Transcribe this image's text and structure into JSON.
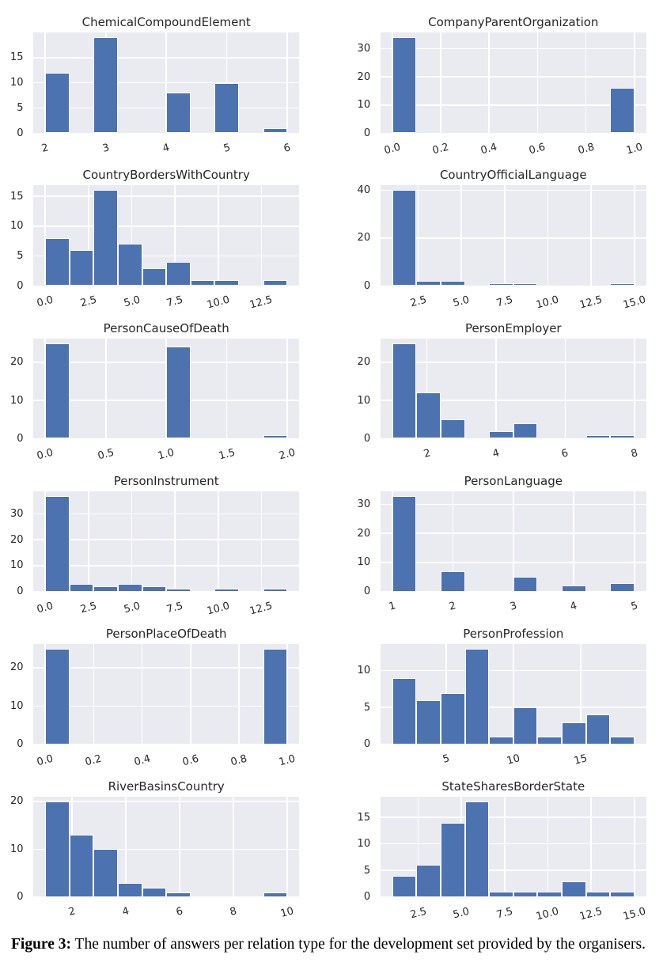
{
  "figure": {
    "caption": {
      "label": "Figure 3:",
      "text": "The number of answers per relation type for the development set provided by the organisers."
    },
    "colors": {
      "bar": "#4c72b0",
      "bar_edge": "#ffffff",
      "axes_background": "#eaeaf1",
      "gridline": "#ffffff",
      "tick_text": "#262626",
      "title_text": "#262626",
      "caption_text": "#000000",
      "figure_background": "#ffffff"
    },
    "chart_data": [
      {
        "type": "bar",
        "title": "ChemicalCompoundElement",
        "bin_start": 2,
        "bin_width": 0.4,
        "counts": [
          12,
          0,
          19,
          0,
          0,
          8,
          0,
          10,
          0,
          1
        ],
        "xlim": [
          1.8,
          6.2
        ],
        "ylim": [
          0,
          19.95
        ],
        "xticks": [
          2,
          3,
          4,
          5,
          6
        ],
        "xtick_labels": [
          "2",
          "3",
          "4",
          "5",
          "6"
        ],
        "yticks": [
          0,
          5,
          10,
          15
        ],
        "ytick_labels": [
          "0",
          "5",
          "10",
          "15"
        ]
      },
      {
        "type": "bar",
        "title": "CompanyParentOrganization",
        "bin_start": 0,
        "bin_width": 0.1,
        "counts": [
          34,
          0,
          0,
          0,
          0,
          0,
          0,
          0,
          0,
          16
        ],
        "xlim": [
          -0.05,
          1.05
        ],
        "ylim": [
          0,
          35.7
        ],
        "xticks": [
          0,
          0.2,
          0.4,
          0.6,
          0.8,
          1.0
        ],
        "xtick_labels": [
          "0.0",
          "0.2",
          "0.4",
          "0.6",
          "0.8",
          "1.0"
        ],
        "yticks": [
          0,
          10,
          20,
          30
        ],
        "ytick_labels": [
          "0",
          "10",
          "20",
          "30"
        ]
      },
      {
        "type": "bar",
        "title": "CountryBordersWithCountry",
        "bin_start": 0,
        "bin_width": 1.4,
        "counts": [
          8,
          6,
          16,
          7,
          3,
          4,
          1,
          1,
          0,
          1
        ],
        "xlim": [
          -0.7,
          14.7
        ],
        "ylim": [
          0,
          16.8
        ],
        "xticks": [
          0,
          2.5,
          5,
          7.5,
          10,
          12.5
        ],
        "xtick_labels": [
          "0.0",
          "2.5",
          "5.0",
          "7.5",
          "10.0",
          "12.5"
        ],
        "yticks": [
          0,
          5,
          10,
          15
        ],
        "ytick_labels": [
          "0",
          "5",
          "10",
          "15"
        ]
      },
      {
        "type": "bar",
        "title": "CountryOfficialLanguage",
        "bin_start": 1,
        "bin_width": 1.4,
        "counts": [
          40,
          2,
          2,
          0,
          1,
          1,
          0,
          0,
          0,
          1
        ],
        "xlim": [
          0.3,
          15.7
        ],
        "ylim": [
          0,
          42
        ],
        "xticks": [
          2.5,
          5,
          7.5,
          10,
          12.5,
          15
        ],
        "xtick_labels": [
          "2.5",
          "5.0",
          "7.5",
          "10.0",
          "12.5",
          "15.0"
        ],
        "yticks": [
          0,
          20,
          40
        ],
        "ytick_labels": [
          "0",
          "20",
          "40"
        ]
      },
      {
        "type": "bar",
        "title": "PersonCauseOfDeath",
        "bin_start": 0,
        "bin_width": 0.2,
        "counts": [
          25,
          0,
          0,
          0,
          0,
          24,
          0,
          0,
          0,
          1
        ],
        "xlim": [
          -0.1,
          2.1
        ],
        "ylim": [
          0,
          26.25
        ],
        "xticks": [
          0,
          0.5,
          1.0,
          1.5,
          2.0
        ],
        "xtick_labels": [
          "0.0",
          "0.5",
          "1.0",
          "1.5",
          "2.0"
        ],
        "yticks": [
          0,
          10,
          20
        ],
        "ytick_labels": [
          "0",
          "10",
          "20"
        ]
      },
      {
        "type": "bar",
        "title": "PersonEmployer",
        "bin_start": 1,
        "bin_width": 0.7,
        "counts": [
          25,
          12,
          5,
          0,
          2,
          4,
          0,
          0,
          1,
          1
        ],
        "xlim": [
          0.65,
          8.35
        ],
        "ylim": [
          0,
          26.25
        ],
        "xticks": [
          2,
          4,
          6,
          8
        ],
        "xtick_labels": [
          "2",
          "4",
          "6",
          "8"
        ],
        "yticks": [
          0,
          10,
          20
        ],
        "ytick_labels": [
          "0",
          "10",
          "20"
        ]
      },
      {
        "type": "bar",
        "title": "PersonInstrument",
        "bin_start": 0,
        "bin_width": 1.4,
        "counts": [
          37,
          3,
          2,
          3,
          2,
          1,
          0,
          1,
          0,
          1
        ],
        "xlim": [
          -0.7,
          14.7
        ],
        "ylim": [
          0,
          38.85
        ],
        "xticks": [
          0,
          2.5,
          5,
          7.5,
          10,
          12.5
        ],
        "xtick_labels": [
          "0.0",
          "2.5",
          "5.0",
          "7.5",
          "10.0",
          "12.5"
        ],
        "yticks": [
          0,
          10,
          20,
          30
        ],
        "ytick_labels": [
          "0",
          "10",
          "20",
          "30"
        ]
      },
      {
        "type": "bar",
        "title": "PersonLanguage",
        "bin_start": 1,
        "bin_width": 0.4,
        "counts": [
          33,
          0,
          7,
          0,
          0,
          5,
          0,
          2,
          0,
          3
        ],
        "xlim": [
          0.8,
          5.2
        ],
        "ylim": [
          0,
          34.65
        ],
        "xticks": [
          1,
          2,
          3,
          4,
          5
        ],
        "xtick_labels": [
          "1",
          "2",
          "3",
          "4",
          "5"
        ],
        "yticks": [
          0,
          10,
          20,
          30
        ],
        "ytick_labels": [
          "0",
          "10",
          "20",
          "30"
        ]
      },
      {
        "type": "bar",
        "title": "PersonPlaceOfDeath",
        "bin_start": 0,
        "bin_width": 0.1,
        "counts": [
          25,
          0,
          0,
          0,
          0,
          0,
          0,
          0,
          0,
          25
        ],
        "xlim": [
          -0.05,
          1.05
        ],
        "ylim": [
          0,
          26.25
        ],
        "xticks": [
          0,
          0.2,
          0.4,
          0.6,
          0.8,
          1.0
        ],
        "xtick_labels": [
          "0.0",
          "0.2",
          "0.4",
          "0.6",
          "0.8",
          "1.0"
        ],
        "yticks": [
          0,
          10,
          20
        ],
        "ytick_labels": [
          "0",
          "10",
          "20"
        ]
      },
      {
        "type": "bar",
        "title": "PersonProfession",
        "bin_start": 1,
        "bin_width": 1.8,
        "counts": [
          9,
          6,
          7,
          13,
          1,
          5,
          1,
          3,
          4,
          1
        ],
        "xlim": [
          0.1,
          19.9
        ],
        "ylim": [
          0,
          13.65
        ],
        "xticks": [
          5,
          10,
          15
        ],
        "xtick_labels": [
          "5",
          "10",
          "15"
        ],
        "yticks": [
          0,
          5,
          10
        ],
        "ytick_labels": [
          "0",
          "5",
          "10"
        ]
      },
      {
        "type": "bar",
        "title": "RiverBasinsCountry",
        "bin_start": 1,
        "bin_width": 0.9,
        "counts": [
          20,
          13,
          10,
          3,
          2,
          1,
          0,
          0,
          0,
          1
        ],
        "xlim": [
          0.55,
          10.45
        ],
        "ylim": [
          0,
          21
        ],
        "xticks": [
          2,
          4,
          6,
          8,
          10
        ],
        "xtick_labels": [
          "2",
          "4",
          "6",
          "8",
          "10"
        ],
        "yticks": [
          0,
          10,
          20
        ],
        "ytick_labels": [
          "0",
          "10",
          "20"
        ]
      },
      {
        "type": "bar",
        "title": "StateSharesBorderState",
        "bin_start": 1,
        "bin_width": 1.4,
        "counts": [
          4,
          6,
          14,
          18,
          1,
          1,
          1,
          3,
          1,
          1
        ],
        "xlim": [
          0.3,
          15.7
        ],
        "ylim": [
          0,
          18.9
        ],
        "xticks": [
          2.5,
          5,
          7.5,
          10,
          12.5,
          15
        ],
        "xtick_labels": [
          "2.5",
          "5.0",
          "7.5",
          "10.0",
          "12.5",
          "15.0"
        ],
        "yticks": [
          0,
          5,
          10,
          15
        ],
        "ytick_labels": [
          "0",
          "5",
          "10",
          "15"
        ]
      }
    ]
  }
}
